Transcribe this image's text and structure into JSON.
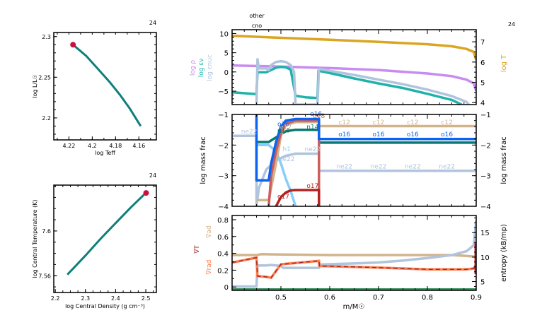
{
  "colors": {
    "frame": "#000000",
    "track": "#0f7f7a",
    "marker": "#c8143c",
    "logT": "#daa520",
    "logRho": "#c88cf0",
    "epsNuc": "#b0c4de",
    "epsNu": "#20b2aa",
    "c12": "#d2b48c",
    "o16": "#0a64f0",
    "n14": "#087870",
    "ne22": "#b0c4de",
    "h1": "#87cefa",
    "o17": "#b22222",
    "o18": "#cd5c5c",
    "grad_ad": "#d2b48c",
    "grad_T": "#a52a2a",
    "grad_rad": "#ff7f50",
    "entropy": "#b0c4de",
    "zero": "#2e8b57"
  },
  "chart_data": [
    {
      "id": "hr",
      "type": "line",
      "title": "",
      "corner_label": "24",
      "xlabel": "log Teff",
      "ylabel": "log L/L☉",
      "xlim": [
        4.233,
        4.145
      ],
      "ylim": [
        2.173,
        2.305
      ],
      "xticks": [
        4.22,
        4.2,
        4.18,
        4.16
      ],
      "xtick_labels": [
        "4.22",
        "4.2",
        "4.18",
        "4.16"
      ],
      "yticks": [
        2.2,
        2.25,
        2.3
      ],
      "ytick_labels": [
        "2.2",
        "2.25",
        "2.3"
      ],
      "series": [
        {
          "name": "track",
          "x": [
            4.2165,
            4.205,
            4.195,
            4.185,
            4.176,
            4.168,
            4.1585
          ],
          "y": [
            2.29,
            2.276,
            2.26,
            2.244,
            2.228,
            2.212,
            2.19
          ]
        }
      ],
      "current": {
        "x": 4.2165,
        "y": 2.29
      }
    },
    {
      "id": "center",
      "type": "line",
      "corner_label": "24",
      "xlabel": "log Central Density (g cm⁻³)",
      "ylabel": "log Central Temperature (K)",
      "xlim": [
        2.195,
        2.535
      ],
      "ylim": [
        7.545,
        7.641
      ],
      "xticks": [
        2.2,
        2.3,
        2.4,
        2.5
      ],
      "xtick_labels": [
        "2.2",
        "2.3",
        "2.4",
        "2.5"
      ],
      "yticks": [
        7.56,
        7.6
      ],
      "ytick_labels": [
        "7.56",
        "7.6"
      ],
      "series": [
        {
          "name": "track",
          "x": [
            2.24,
            2.3,
            2.35,
            2.4,
            2.45,
            2.5
          ],
          "y": [
            7.561,
            7.578,
            7.593,
            7.607,
            7.621,
            7.634
          ]
        }
      ],
      "current": {
        "x": 2.501,
        "y": 7.634
      }
    },
    {
      "id": "profile-top",
      "type": "line",
      "corner_label": "24",
      "top_labels": [
        "other",
        "cno"
      ],
      "xlim": [
        0.4,
        0.9
      ],
      "ylim_left": [
        -8.5,
        11
      ],
      "yticks_left": [
        -5,
        0,
        5,
        10
      ],
      "ytick_labels_left": [
        "−5",
        "0",
        "5",
        "10"
      ],
      "ylabels_left": [
        "log ρ",
        "log εν",
        "log εnuc"
      ],
      "ylim_right": [
        3.9,
        7.6
      ],
      "yticks_right": [
        4,
        5,
        6,
        7
      ],
      "ytick_labels_right": [
        "4",
        "5",
        "6",
        "7"
      ],
      "ylabel_right": "log T",
      "series": [
        {
          "name": "log T",
          "axis": "right",
          "x": [
            0.4,
            0.5,
            0.6,
            0.7,
            0.8,
            0.85,
            0.88,
            0.895,
            0.9
          ],
          "y": [
            7.3,
            7.2,
            7.1,
            7.0,
            6.88,
            6.78,
            6.65,
            6.5,
            6.1
          ]
        },
        {
          "name": "log rho",
          "axis": "left",
          "x": [
            0.4,
            0.5,
            0.6,
            0.7,
            0.8,
            0.85,
            0.88,
            0.895,
            0.9
          ],
          "y": [
            1.7,
            1.4,
            1.0,
            0.5,
            -0.4,
            -1.1,
            -2.0,
            -3.0,
            -5.0
          ]
        },
        {
          "name": "log eps_nu",
          "axis": "left",
          "x": [
            0.4,
            0.45,
            0.452,
            0.47,
            0.49,
            0.5,
            0.51,
            0.52,
            0.525,
            0.53,
            0.55,
            0.575,
            0.577,
            0.6,
            0.65,
            0.7,
            0.75,
            0.8,
            0.85,
            0.87
          ],
          "y": [
            -5.3,
            -5.8,
            -0.1,
            -0.1,
            1.1,
            1.3,
            1.2,
            0.6,
            -2.8,
            -6.2,
            -6.6,
            -6.8,
            0.3,
            -0.3,
            -1.7,
            -3.0,
            -4.2,
            -5.7,
            -7.3,
            -8.5
          ]
        },
        {
          "name": "log eps_nuc",
          "axis": "left",
          "x": [
            0.45,
            0.452,
            0.455,
            0.47,
            0.475,
            0.48,
            0.49,
            0.5,
            0.51,
            0.52,
            0.527,
            0.53,
            0.575,
            0.578,
            0.6,
            0.65,
            0.7,
            0.75,
            0.8,
            0.85,
            0.88,
            0.885
          ],
          "y": [
            -8.5,
            3.3,
            0.9,
            0.9,
            0.5,
            1.8,
            2.6,
            2.8,
            2.6,
            1.8,
            0.0,
            -8.5,
            -8.5,
            0.8,
            0.3,
            -0.8,
            -2.0,
            -3.2,
            -4.6,
            -6.3,
            -7.8,
            -8.5
          ]
        }
      ]
    },
    {
      "id": "profile-abund",
      "type": "line",
      "xlim": [
        0.4,
        0.9
      ],
      "ylim": [
        -4,
        -1
      ],
      "yticks": [
        -4,
        -3,
        -2,
        -1
      ],
      "ytick_labels": [
        "−4",
        "−3",
        "−2",
        "−1"
      ],
      "ylabel": "log mass frac",
      "series": [
        {
          "name": "ne22",
          "x": [
            0.4,
            0.45,
            0.45,
            0.455,
            0.47,
            0.49,
            0.51,
            0.53,
            0.578,
            0.578,
            0.9
          ],
          "y": [
            -1.7,
            -1.7,
            -4.0,
            -3.4,
            -2.8,
            -2.5,
            -2.35,
            -2.28,
            -2.28,
            -2.84,
            -2.84
          ]
        },
        {
          "name": "n14",
          "x": [
            0.45,
            0.475,
            0.49,
            0.51,
            0.53,
            0.578,
            0.578,
            0.9
          ],
          "y": [
            -1.9,
            -1.9,
            -1.75,
            -1.55,
            -1.5,
            -1.5,
            -1.92,
            -1.92
          ]
        },
        {
          "name": "h1",
          "x": [
            0.45,
            0.475,
            0.49,
            0.5,
            0.51,
            0.52,
            0.53
          ],
          "y": [
            -2.0,
            -2.0,
            -2.2,
            -2.6,
            -3.1,
            -3.5,
            -4.0
          ]
        },
        {
          "name": "c12",
          "x": [
            0.45,
            0.475,
            0.49,
            0.5,
            0.51,
            0.53,
            0.578,
            0.578,
            0.9
          ],
          "y": [
            -3.8,
            -3.8,
            -2.6,
            -1.7,
            -1.35,
            -1.25,
            -1.25,
            -1.38,
            -1.38
          ]
        },
        {
          "name": "o18",
          "x": [
            0.475,
            0.48,
            0.49,
            0.5,
            0.51,
            0.53,
            0.578,
            0.578
          ],
          "y": [
            -4.0,
            -3.0,
            -2.2,
            -1.6,
            -1.3,
            -1.2,
            -1.2,
            -4.0
          ]
        },
        {
          "name": "o16",
          "x": [
            0.45,
            0.45,
            0.455,
            0.475,
            0.48,
            0.49,
            0.5,
            0.51,
            0.53,
            0.578,
            0.578,
            0.9
          ],
          "y": [
            -1.0,
            -3.15,
            -3.15,
            -3.15,
            -2.6,
            -1.9,
            -1.4,
            -1.2,
            -1.15,
            -1.15,
            -1.8,
            -1.8
          ]
        },
        {
          "name": "o17",
          "x": [
            0.49,
            0.5,
            0.51,
            0.52,
            0.53,
            0.578,
            0.578
          ],
          "y": [
            -4.0,
            -3.7,
            -3.55,
            -3.48,
            -3.47,
            -3.47,
            -4.0
          ]
        }
      ],
      "labels": [
        {
          "text": "ne22",
          "x": 0.435,
          "y": -1.62,
          "series": "ne22"
        },
        {
          "text": "o16",
          "x": 0.505,
          "y": -1.38,
          "series": "o16"
        },
        {
          "text": "c12",
          "x": 0.51,
          "y": -1.48,
          "series": "c12"
        },
        {
          "text": "n14",
          "x": 0.505,
          "y": -1.6,
          "series": "n14"
        },
        {
          "text": "h1",
          "x": 0.512,
          "y": -2.2,
          "series": "h1"
        },
        {
          "text": "ne22",
          "x": 0.512,
          "y": -2.52,
          "series": "ne22"
        },
        {
          "text": "o17",
          "x": 0.505,
          "y": -3.75,
          "series": "o17"
        },
        {
          "text": "o16",
          "x": 0.572,
          "y": -1.05,
          "series": "o16"
        },
        {
          "text": "o18",
          "x": 0.578,
          "y": -1.12,
          "series": "o18"
        },
        {
          "text": "n14",
          "x": 0.565,
          "y": -1.47,
          "series": "n14"
        },
        {
          "text": "ne22",
          "x": 0.565,
          "y": -2.2,
          "series": "ne22"
        },
        {
          "text": "o17",
          "x": 0.565,
          "y": -3.4,
          "series": "o17"
        },
        {
          "text": "c12",
          "x": 0.63,
          "y": -1.32,
          "series": "c12"
        },
        {
          "text": "c12",
          "x": 0.7,
          "y": -1.32,
          "series": "c12"
        },
        {
          "text": "c12",
          "x": 0.77,
          "y": -1.32,
          "series": "c12"
        },
        {
          "text": "c12",
          "x": 0.84,
          "y": -1.32,
          "series": "c12"
        },
        {
          "text": "o16",
          "x": 0.63,
          "y": -1.72,
          "series": "o16"
        },
        {
          "text": "o16",
          "x": 0.7,
          "y": -1.72,
          "series": "o16"
        },
        {
          "text": "o16",
          "x": 0.77,
          "y": -1.72,
          "series": "o16"
        },
        {
          "text": "o16",
          "x": 0.84,
          "y": -1.72,
          "series": "o16"
        },
        {
          "text": "ne22",
          "x": 0.63,
          "y": -2.76,
          "series": "ne22"
        },
        {
          "text": "ne22",
          "x": 0.7,
          "y": -2.76,
          "series": "ne22"
        },
        {
          "text": "ne22",
          "x": 0.77,
          "y": -2.76,
          "series": "ne22"
        },
        {
          "text": "ne22",
          "x": 0.84,
          "y": -2.76,
          "series": "ne22"
        }
      ]
    },
    {
      "id": "profile-grad",
      "type": "line",
      "xlim": [
        0.4,
        0.9
      ],
      "xticks": [
        0.5,
        0.6,
        0.7,
        0.8,
        0.9
      ],
      "xtick_labels": [
        "0.5",
        "0.6",
        "0.7",
        "0.8",
        "0.9"
      ],
      "xlabel": "m/M☉",
      "ylim_left": [
        -0.04,
        0.85
      ],
      "yticks_left": [
        0,
        0.2,
        0.4,
        0.6,
        0.8
      ],
      "ytick_labels_left": [
        "0",
        "0.2",
        "0.4",
        "0.6",
        "0.8"
      ],
      "ylabels_left": [
        "∇rad",
        "∇T",
        "∇ad"
      ],
      "ylim_right": [
        3.2,
        18.5
      ],
      "yticks_right": [
        5,
        10,
        15
      ],
      "ytick_labels_right": [
        "5",
        "10",
        "15"
      ],
      "ylabel_right": "entropy (kB/mp)",
      "series": [
        {
          "name": "grad_ad",
          "axis": "left",
          "x": [
            0.4,
            0.45,
            0.46,
            0.6,
            0.7,
            0.8,
            0.85,
            0.88,
            0.9
          ],
          "y": [
            0.38,
            0.38,
            0.39,
            0.38,
            0.38,
            0.38,
            0.38,
            0.37,
            0.36
          ]
        },
        {
          "name": "entropy",
          "axis": "right",
          "x": [
            0.4,
            0.45,
            0.452,
            0.47,
            0.48,
            0.5,
            0.505,
            0.578,
            0.58,
            0.65,
            0.7,
            0.75,
            0.8,
            0.85,
            0.88,
            0.895,
            0.9
          ],
          "y": [
            4.0,
            4.0,
            8.3,
            8.3,
            8.4,
            8.2,
            7.8,
            7.8,
            8.5,
            8.7,
            8.9,
            9.3,
            9.8,
            10.4,
            11.2,
            12.4,
            17.5
          ]
        },
        {
          "name": "grad_rad",
          "axis": "left",
          "x": [
            0.4,
            0.45,
            0.452,
            0.47,
            0.48,
            0.5,
            0.578,
            0.579,
            0.65,
            0.7,
            0.75,
            0.8,
            0.85,
            0.88,
            0.895,
            0.9
          ],
          "y": [
            0.29,
            0.35,
            0.13,
            0.12,
            0.11,
            0.27,
            0.31,
            0.25,
            0.24,
            0.23,
            0.22,
            0.21,
            0.21,
            0.21,
            0.22,
            0.27
          ]
        },
        {
          "name": "grad_T",
          "axis": "left",
          "x": [
            0.4,
            0.45,
            0.452,
            0.47,
            0.48,
            0.5,
            0.578,
            0.579,
            0.65,
            0.7,
            0.75,
            0.8,
            0.85,
            0.88,
            0.895,
            0.9
          ],
          "y": [
            0.29,
            0.35,
            0.13,
            0.12,
            0.11,
            0.27,
            0.31,
            0.25,
            0.24,
            0.23,
            0.22,
            0.21,
            0.21,
            0.21,
            0.22,
            0.27
          ]
        },
        {
          "name": "zero",
          "axis": "left",
          "x": [
            0.4,
            0.9
          ],
          "y": [
            -0.03,
            -0.03
          ]
        }
      ]
    }
  ]
}
